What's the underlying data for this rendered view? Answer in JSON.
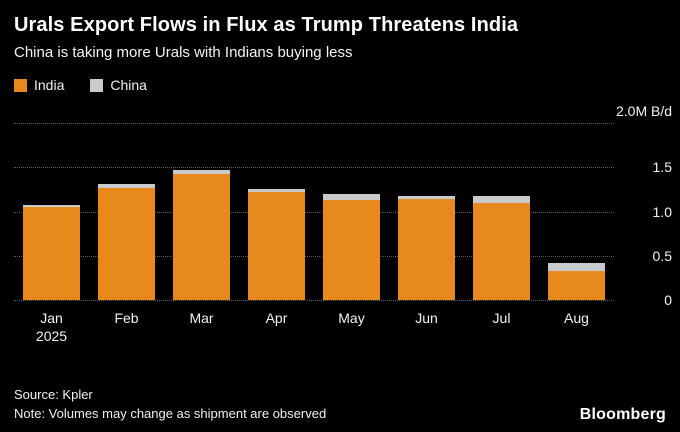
{
  "header": {
    "title": "Urals Export Flows in Flux as Trump Threatens India",
    "subtitle": "China is taking more Urals with Indians buying less"
  },
  "legend": {
    "items": [
      {
        "label": "India",
        "color": "#E8891D"
      },
      {
        "label": "China",
        "color": "#C9CACB"
      }
    ]
  },
  "chart_data": {
    "type": "bar",
    "stacked": true,
    "title": "Urals Export Flows in Flux as Trump Threatens India",
    "subtitle": "China is taking more Urals with Indians buying less",
    "unit": "M B/d",
    "categories": [
      {
        "line1": "Jan",
        "line2": "2025"
      },
      {
        "line1": "Feb"
      },
      {
        "line1": "Mar"
      },
      {
        "line1": "Apr"
      },
      {
        "line1": "May"
      },
      {
        "line1": "Jun"
      },
      {
        "line1": "Jul"
      },
      {
        "line1": "Aug"
      }
    ],
    "series": [
      {
        "name": "India",
        "color": "#E8891D",
        "values": [
          1.05,
          1.27,
          1.42,
          1.22,
          1.13,
          1.14,
          1.1,
          0.33
        ]
      },
      {
        "name": "China",
        "color": "#C9CACB",
        "values": [
          0.02,
          0.04,
          0.05,
          0.03,
          0.07,
          0.04,
          0.08,
          0.09
        ]
      }
    ],
    "ylim": [
      0,
      2.0
    ],
    "yticks": [
      {
        "value": 2.0,
        "label": "2.0M B/d"
      },
      {
        "value": 1.5,
        "label": "1.5"
      },
      {
        "value": 1.0,
        "label": "1.0"
      },
      {
        "value": 0.5,
        "label": "0.5"
      },
      {
        "value": 0,
        "label": "0"
      }
    ],
    "grid": "horizontal dotted",
    "legend_position": "top-left"
  },
  "footer": {
    "source": "Source: Kpler",
    "note": "Note: Volumes may change as shipment are observed",
    "brand": "Bloomberg"
  },
  "colors": {
    "background": "#000000",
    "text": "#FFFFFF",
    "gridline": "#5C5C5C"
  }
}
